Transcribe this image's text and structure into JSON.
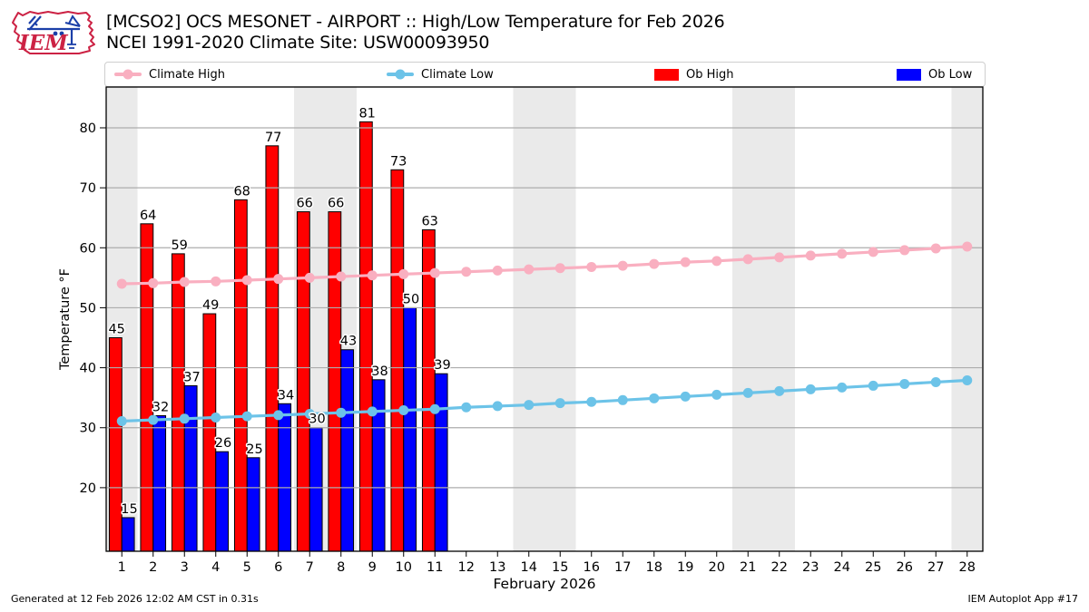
{
  "header": {
    "title": "[MCSO2] OCS MESONET - AIRPORT :: High/Low Temperature for Feb 2026",
    "subtitle": "NCEI 1991-2020 Climate Site: USW00093950",
    "logo_text": "IEM"
  },
  "legend": {
    "items": [
      {
        "label": "Climate High",
        "type": "line",
        "color": "#F9AFC0"
      },
      {
        "label": "Climate Low",
        "type": "line",
        "color": "#6CC3E8"
      },
      {
        "label": "Ob High",
        "type": "patch",
        "color": "#FF0000"
      },
      {
        "label": "Ob Low",
        "type": "patch",
        "color": "#0000FF"
      }
    ]
  },
  "chart_data": {
    "type": "bar",
    "title": "[MCSO2] OCS MESONET - AIRPORT :: High/Low Temperature for Feb 2026",
    "subtitle": "NCEI 1991-2020 Climate Site: USW00093950",
    "xlabel": "February 2026",
    "ylabel": "Temperature °F",
    "days": [
      1,
      2,
      3,
      4,
      5,
      6,
      7,
      8,
      9,
      10,
      11,
      12,
      13,
      14,
      15,
      16,
      17,
      18,
      19,
      20,
      21,
      22,
      23,
      24,
      25,
      26,
      27,
      28
    ],
    "ylim": [
      9.4,
      86.8
    ],
    "yticks": [
      20,
      30,
      40,
      50,
      60,
      70,
      80
    ],
    "grid": true,
    "weekend_bands": [
      [
        0.5,
        1.5
      ],
      [
        6.5,
        8.5
      ],
      [
        13.5,
        15.5
      ],
      [
        20.5,
        22.5
      ],
      [
        27.5,
        28.5
      ]
    ],
    "colors": {
      "climate_high": "#F9AFC0",
      "climate_low": "#6CC3E8",
      "ob_high": "#FF0000",
      "ob_low": "#0000FF",
      "grid": "#ADADAD",
      "band": "#EAEAEA",
      "spine": "#000000"
    },
    "series": [
      {
        "name": "Climate High",
        "type": "line",
        "values": [
          54.0,
          54.1,
          54.3,
          54.4,
          54.6,
          54.8,
          55.0,
          55.2,
          55.4,
          55.6,
          55.8,
          56.0,
          56.2,
          56.4,
          56.6,
          56.8,
          57.0,
          57.3,
          57.6,
          57.8,
          58.1,
          58.4,
          58.7,
          59.0,
          59.3,
          59.6,
          59.9,
          60.2
        ]
      },
      {
        "name": "Climate Low",
        "type": "line",
        "values": [
          31.1,
          31.3,
          31.5,
          31.7,
          31.9,
          32.1,
          32.3,
          32.5,
          32.7,
          32.9,
          33.1,
          33.4,
          33.6,
          33.8,
          34.1,
          34.3,
          34.6,
          34.9,
          35.2,
          35.5,
          35.8,
          36.1,
          36.4,
          36.7,
          37.0,
          37.3,
          37.6,
          37.9
        ]
      },
      {
        "name": "Ob High",
        "type": "bar",
        "values": [
          45,
          64,
          59,
          49,
          68,
          77,
          66,
          66,
          81,
          73,
          63
        ]
      },
      {
        "name": "Ob Low",
        "type": "bar",
        "values": [
          15,
          32,
          37,
          26,
          25,
          34,
          30,
          43,
          38,
          50,
          39
        ]
      }
    ]
  },
  "footer": {
    "left": "Generated at 12 Feb 2026 12:02 AM CST in 0.31s",
    "right": "IEM Autoplot App #17"
  }
}
